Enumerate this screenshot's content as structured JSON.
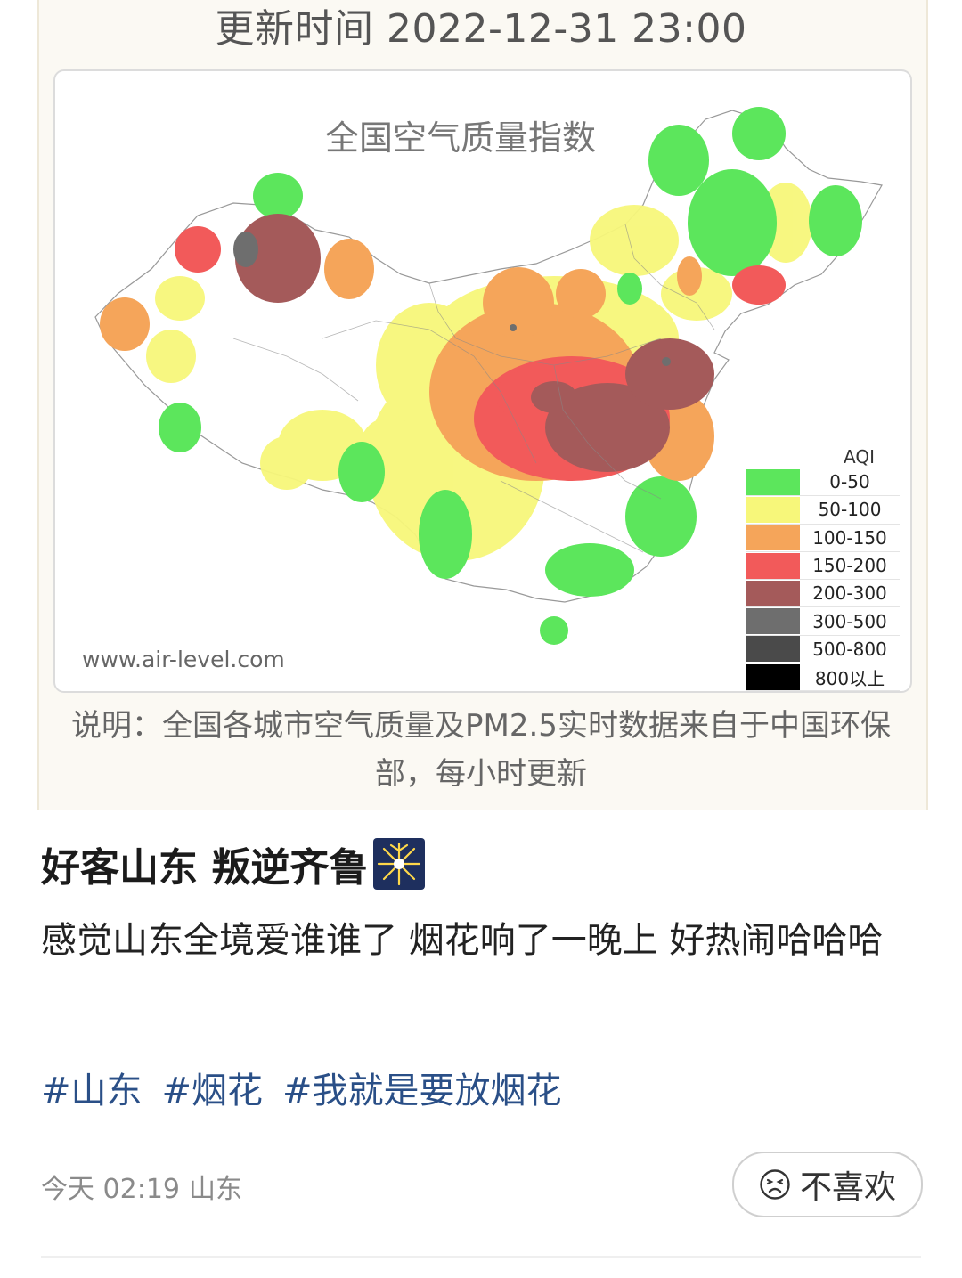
{
  "header": {
    "update_time": "更新时间 2022-12-31 23:00"
  },
  "map": {
    "title": "全国空气质量指数",
    "url": "www.air-level.com",
    "legend": {
      "title": "AQI",
      "items": [
        {
          "label": "0-50",
          "color": "#5ce65c"
        },
        {
          "label": "50-100",
          "color": "#f7f77a"
        },
        {
          "label": "100-150",
          "color": "#f5a55a"
        },
        {
          "label": "150-200",
          "color": "#f25a5a"
        },
        {
          "label": "200-300",
          "color": "#a45a5a"
        },
        {
          "label": "300-500",
          "color": "#6e6e6e"
        },
        {
          "label": "500-800",
          "color": "#4a4a4a"
        },
        {
          "label": "800以上",
          "color": "#000000"
        }
      ]
    }
  },
  "caption": "说明：全国各城市空气质量及PM2.5实时数据来自于中国环保部，每小时更新",
  "post": {
    "title": "好客山东 叛逆齐鲁",
    "body": "感觉山东全境爱谁谁了 烟花响了一晚上 好热闹哈哈哈",
    "tags": [
      "#山东",
      "#烟花",
      "#我就是要放烟花"
    ],
    "time": "今天 02:19",
    "location": "山东",
    "dislike_label": "不喜欢"
  }
}
